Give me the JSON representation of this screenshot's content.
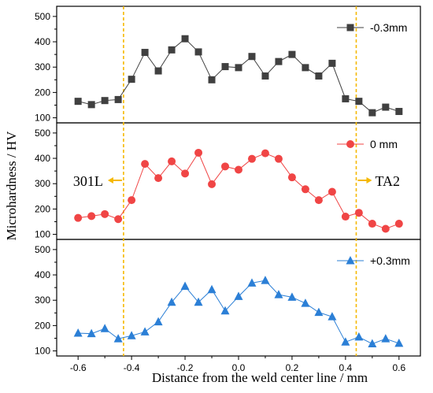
{
  "chart_data": {
    "type": "line",
    "ylabel": "Microhardness / HV",
    "xlabel": "Distance from the weld center line / mm",
    "xlim": [
      -0.68,
      0.68
    ],
    "ylim": [
      80,
      540
    ],
    "xticks": [
      -0.6,
      -0.4,
      -0.2,
      0.0,
      0.2,
      0.4,
      0.6
    ],
    "xtick_labels": [
      "-0.6",
      "-0.4",
      "-0.2",
      "0.0",
      "0.2",
      "0.4",
      "0.6"
    ],
    "yticks": [
      100,
      200,
      300,
      400,
      500
    ],
    "ytick_labels": [
      "100",
      "200",
      "300",
      "400",
      "500"
    ],
    "vlines": [
      -0.43,
      0.44
    ],
    "vline_color": "#F5B800",
    "x": [
      -0.6,
      -0.55,
      -0.5,
      -0.45,
      -0.4,
      -0.35,
      -0.3,
      -0.25,
      -0.2,
      -0.15,
      -0.1,
      -0.05,
      0.0,
      0.05,
      0.1,
      0.15,
      0.2,
      0.25,
      0.3,
      0.35,
      0.4,
      0.45,
      0.5,
      0.55,
      0.6
    ],
    "series": [
      {
        "name": "-0.3mm",
        "color": "#404040",
        "marker": "square",
        "values": [
          165,
          152,
          168,
          172,
          252,
          358,
          285,
          368,
          412,
          360,
          250,
          302,
          298,
          342,
          265,
          322,
          350,
          298,
          265,
          315,
          175,
          165,
          120,
          142,
          125
        ]
      },
      {
        "name": "0 mm",
        "color": "#F04545",
        "marker": "circle",
        "values": [
          165,
          172,
          180,
          160,
          235,
          378,
          322,
          388,
          340,
          422,
          298,
          368,
          355,
          398,
          420,
          398,
          325,
          278,
          235,
          268,
          170,
          185,
          142,
          122,
          142
        ]
      },
      {
        "name": "+0.3mm",
        "color": "#2B7FD6",
        "marker": "triangle",
        "values": [
          170,
          168,
          188,
          148,
          160,
          175,
          215,
          292,
          355,
          292,
          342,
          258,
          315,
          368,
          378,
          322,
          312,
          288,
          252,
          235,
          135,
          155,
          128,
          148,
          130
        ]
      }
    ],
    "annotations": [
      {
        "text": "301L",
        "arrow": "left"
      },
      {
        "text": "TA2",
        "arrow": "right"
      }
    ]
  }
}
